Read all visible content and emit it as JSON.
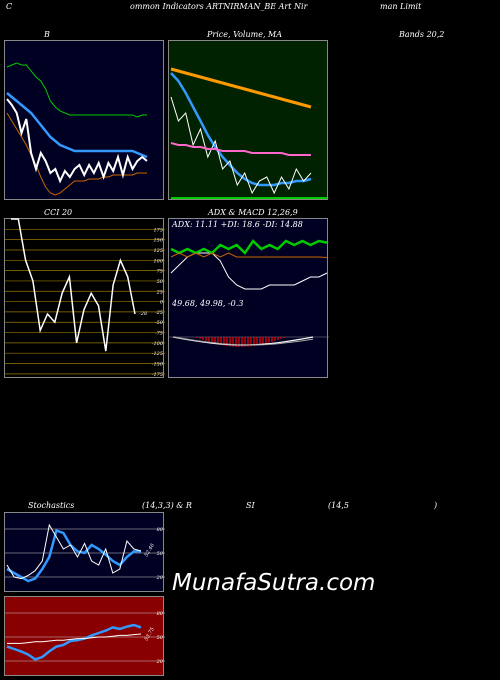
{
  "header": {
    "c": "C",
    "title": "ommon  Indicators ARTNIRMAN_BE Art Nir",
    "right": "man  Limit"
  },
  "labels": {
    "bb": "B",
    "price": "Price,  Volume,  MA",
    "bands": "Bands 20,2",
    "cci": "CCI 20",
    "adx": "ADX  & MACD 12,26,9",
    "stoch_left": "Stochastics",
    "stoch_mid": "(14,3,3) & R",
    "rsi_si": "SI",
    "rsi_params": "(14,5",
    "paren": ")"
  },
  "adx_line": "ADX: 11.11  +DI: 18.6  -DI: 14.88",
  "macd_line": "49.68,  49.98,  -0.3",
  "cci_value_label": "-28",
  "stoch_value_label": "52.46",
  "rsi_value_label": "53.75",
  "watermark": "MunafaSutra.com",
  "colors": {
    "bb_bg": "#000022",
    "price_bg": "#002200",
    "cci_bg": "#000000",
    "adx_bg": "#000022",
    "stoch_bg": "#000022",
    "rsi_bg": "#880000",
    "cci_grid": "#997700"
  },
  "chart_data": [
    {
      "type": "line",
      "panel": "bollinger",
      "series": [
        {
          "color": "#00cc00",
          "values": [
            73,
            72,
            71,
            72,
            72,
            75,
            78,
            80,
            84,
            90,
            93,
            95,
            96,
            97,
            97,
            97,
            97,
            97,
            97,
            97,
            97,
            97,
            97,
            97,
            97,
            97,
            97,
            98,
            97,
            97
          ]
        },
        {
          "color": "#3399ff",
          "values": [
            86,
            88,
            90,
            92,
            94,
            96,
            99,
            102,
            105,
            108,
            110,
            112,
            113,
            114,
            115,
            115,
            115,
            115,
            115,
            115,
            115,
            115,
            115,
            115,
            115,
            115,
            115,
            116,
            117,
            118
          ]
        },
        {
          "color": "#cc6600",
          "values": [
            96,
            100,
            104,
            108,
            112,
            117,
            122,
            128,
            133,
            136,
            137,
            136,
            134,
            132,
            130,
            130,
            130,
            129,
            129,
            129,
            128,
            128,
            127,
            127,
            127,
            127,
            127,
            126,
            126,
            126
          ]
        },
        {
          "color": "#ffffff",
          "values": [
            89,
            92,
            96,
            106,
            99,
            116,
            124,
            116,
            120,
            126,
            124,
            130,
            125,
            128,
            124,
            122,
            127,
            122,
            126,
            121,
            128,
            121,
            125,
            118,
            127,
            118,
            124,
            120,
            118,
            120
          ]
        }
      ]
    },
    {
      "type": "line",
      "panel": "price_ma",
      "series": [
        {
          "color": "#ff9900",
          "values": [
            74,
            75,
            76,
            77,
            78,
            79,
            80,
            81,
            82,
            83,
            84,
            85,
            86,
            87,
            88,
            89,
            90,
            91,
            92,
            93
          ]
        },
        {
          "color": "#3399ff",
          "values": [
            76,
            80,
            86,
            93,
            100,
            107,
            113,
            118,
            122,
            126,
            129,
            131,
            132,
            132,
            132,
            131,
            131,
            130,
            130,
            129
          ]
        },
        {
          "color": "#ffffff",
          "values": [
            88,
            100,
            96,
            112,
            104,
            118,
            110,
            124,
            120,
            132,
            126,
            136,
            130,
            128,
            136,
            128,
            134,
            124,
            130,
            126
          ]
        },
        {
          "color": "#ff66cc",
          "values": [
            111,
            112,
            112,
            113,
            113,
            114,
            114,
            115,
            115,
            115,
            115,
            116,
            116,
            116,
            116,
            116,
            117,
            117,
            117,
            117
          ]
        }
      ]
    },
    {
      "type": "line",
      "panel": "cci",
      "ticks": [
        175,
        150,
        125,
        100,
        75,
        50,
        25,
        0,
        -25,
        -50,
        -75,
        -100,
        -125,
        -150,
        -175
      ],
      "ylim": [
        -187.5,
        200
      ],
      "series": [
        {
          "color": "#ffffff",
          "values": [
            200,
            200,
            100,
            50,
            -70,
            -30,
            -50,
            20,
            60,
            -100,
            -20,
            20,
            -10,
            -120,
            40,
            100,
            60,
            -30
          ]
        }
      ]
    },
    {
      "type": "line",
      "panel": "adx",
      "series": [
        {
          "color": "#ffffff",
          "values": [
            11,
            13,
            15,
            16,
            16,
            16,
            14,
            10,
            8,
            7,
            7,
            7,
            8,
            8,
            8,
            8,
            9,
            10,
            10,
            11
          ]
        },
        {
          "color": "#00cc00",
          "values": [
            17,
            16,
            17,
            16,
            17,
            16,
            18,
            17,
            18,
            16,
            19,
            17,
            18,
            17,
            19,
            18,
            19,
            18,
            19,
            18.6
          ]
        },
        {
          "color": "#cc6600",
          "values": [
            15,
            16,
            15,
            16,
            15,
            16,
            15,
            16,
            15,
            15,
            15,
            15,
            15,
            15,
            15,
            15,
            15,
            15,
            15,
            14.88
          ]
        }
      ]
    },
    {
      "type": "line",
      "panel": "stochastics",
      "ticks": [
        80,
        50,
        20
      ],
      "ylim": [
        0,
        100
      ],
      "series": [
        {
          "color": "#3399ff",
          "values": [
            30,
            25,
            20,
            15,
            18,
            30,
            45,
            78,
            75,
            60,
            52,
            50,
            60,
            55,
            48,
            40,
            35,
            45,
            52,
            52
          ]
        },
        {
          "color": "#ffffff",
          "values": [
            35,
            20,
            18,
            22,
            28,
            40,
            85,
            70,
            55,
            60,
            45,
            62,
            40,
            35,
            55,
            25,
            30,
            65,
            55,
            52.46
          ]
        }
      ]
    },
    {
      "type": "line",
      "panel": "rsi",
      "ticks": [
        80,
        50,
        20
      ],
      "ylim": [
        0,
        100
      ],
      "series": [
        {
          "color": "#3399ff",
          "values": [
            38,
            35,
            32,
            28,
            22,
            25,
            32,
            38,
            40,
            45,
            46,
            48,
            52,
            55,
            58,
            62,
            60,
            63,
            65,
            62
          ]
        },
        {
          "color": "#ffffff",
          "values": [
            42,
            42,
            42,
            43,
            44,
            44,
            45,
            46,
            46,
            47,
            48,
            48,
            49,
            50,
            50,
            51,
            52,
            52,
            53,
            53.75
          ]
        }
      ]
    }
  ]
}
